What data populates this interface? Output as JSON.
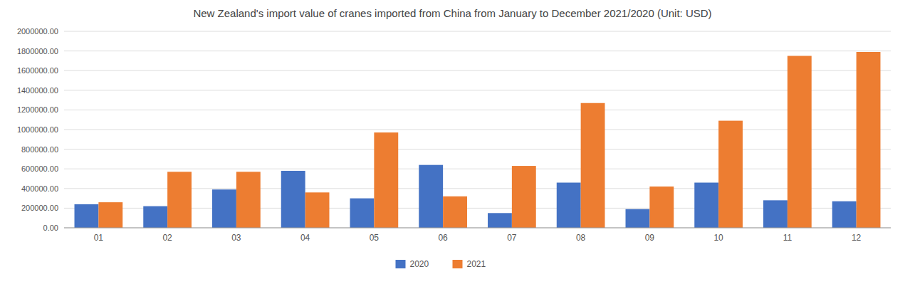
{
  "chart_data": {
    "type": "bar",
    "title": "New Zealand's import value of cranes imported from China from January to December 2021/2020 (Unit: USD)",
    "categories": [
      "01",
      "02",
      "03",
      "04",
      "05",
      "06",
      "07",
      "08",
      "09",
      "10",
      "11",
      "12"
    ],
    "series": [
      {
        "name": "2020",
        "color": "#4472C4",
        "values": [
          240000,
          220000,
          390000,
          580000,
          300000,
          640000,
          150000,
          460000,
          190000,
          460000,
          280000,
          270000
        ]
      },
      {
        "name": "2021",
        "color": "#ED7D31",
        "values": [
          260000,
          570000,
          570000,
          360000,
          970000,
          320000,
          630000,
          1270000,
          420000,
          1090000,
          1750000,
          1790000
        ]
      }
    ],
    "ylim": [
      0,
      2000000
    ],
    "yticks": [
      {
        "value": 0,
        "label": "0.00"
      },
      {
        "value": 200000,
        "label": "200000.00"
      },
      {
        "value": 400000,
        "label": "400000.00"
      },
      {
        "value": 600000,
        "label": "600000.00"
      },
      {
        "value": 800000,
        "label": "800000.00"
      },
      {
        "value": 1000000,
        "label": "1000000.00"
      },
      {
        "value": 1200000,
        "label": "1200000.00"
      },
      {
        "value": 1400000,
        "label": "1400000.00"
      },
      {
        "value": 1600000,
        "label": "1600000.00"
      },
      {
        "value": 1800000,
        "label": "1800000.00"
      },
      {
        "value": 2000000,
        "label": "2000000.00"
      }
    ],
    "grid": true,
    "legend": "bottom"
  }
}
